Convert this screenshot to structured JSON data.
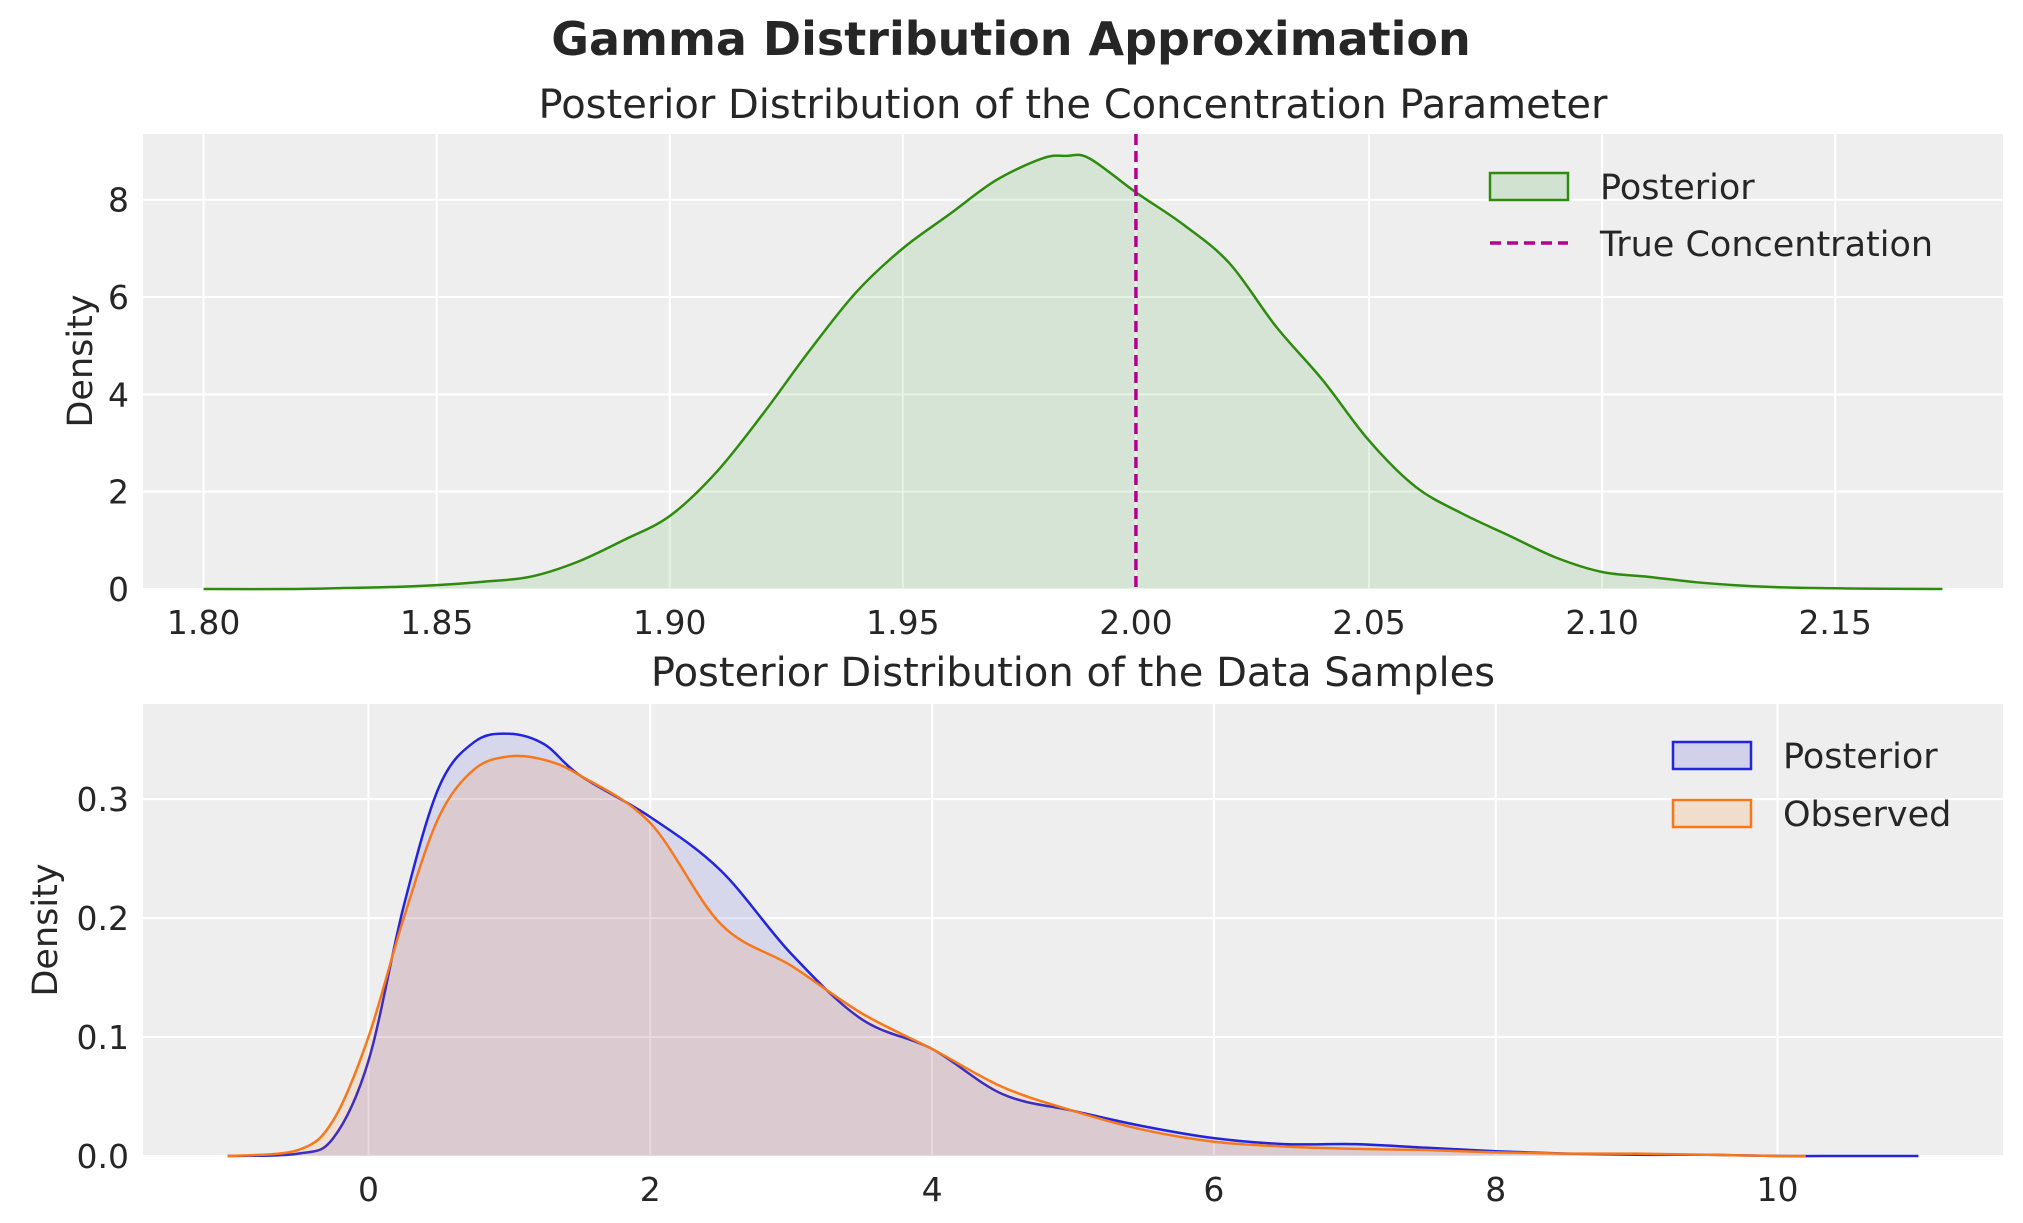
{
  "figure": {
    "suptitle": "Gamma Distribution Approximation"
  },
  "chart_data": [
    {
      "type": "area",
      "title": "Posterior Distribution of the Concentration Parameter",
      "xlabel": "",
      "ylabel": "Density",
      "xlim": [
        1.787,
        2.186
      ],
      "ylim": [
        0,
        9.35
      ],
      "xticks": [
        1.8,
        1.85,
        1.9,
        1.95,
        2.0,
        2.05,
        2.1,
        2.15
      ],
      "xtick_labels": [
        "1.80",
        "1.85",
        "1.90",
        "1.95",
        "2.00",
        "2.05",
        "2.10",
        "2.15"
      ],
      "yticks": [
        0,
        2,
        4,
        6,
        8
      ],
      "ytick_labels": [
        "0",
        "2",
        "4",
        "6",
        "8"
      ],
      "grid": true,
      "legend_position": "top-right",
      "series": [
        {
          "name": "Posterior",
          "kind": "kde-fill",
          "color": "#2ca02c",
          "line_color": "#2e8b0e",
          "x": [
            1.8,
            1.82,
            1.83,
            1.84,
            1.85,
            1.86,
            1.87,
            1.88,
            1.89,
            1.9,
            1.91,
            1.92,
            1.93,
            1.94,
            1.95,
            1.96,
            1.97,
            1.98,
            1.985,
            1.99,
            2.0,
            2.01,
            2.02,
            2.03,
            2.04,
            2.05,
            2.06,
            2.07,
            2.08,
            2.09,
            2.1,
            2.11,
            2.12,
            2.13,
            2.14,
            2.15,
            2.16,
            2.173
          ],
          "y": [
            0.0,
            0.0,
            0.02,
            0.04,
            0.08,
            0.15,
            0.25,
            0.55,
            1.0,
            1.5,
            2.4,
            3.6,
            4.9,
            6.1,
            7.0,
            7.7,
            8.4,
            8.85,
            8.9,
            8.85,
            8.15,
            7.5,
            6.7,
            5.4,
            4.3,
            3.05,
            2.1,
            1.55,
            1.1,
            0.65,
            0.35,
            0.25,
            0.14,
            0.07,
            0.03,
            0.015,
            0.005,
            0.0
          ]
        },
        {
          "name": "True Concentration",
          "kind": "vline",
          "color": "#b5008f",
          "x_value": 2.0
        }
      ]
    },
    {
      "type": "area",
      "title": "Posterior Distribution of the Data Samples",
      "xlabel": "",
      "ylabel": "Density",
      "xlim": [
        -1.6,
        11.6
      ],
      "ylim": [
        0,
        0.38
      ],
      "xticks": [
        0,
        2,
        4,
        6,
        8,
        10
      ],
      "xtick_labels": [
        "0",
        "2",
        "4",
        "6",
        "8",
        "10"
      ],
      "yticks": [
        0.0,
        0.1,
        0.2,
        0.3
      ],
      "ytick_labels": [
        "0.0",
        "0.1",
        "0.2",
        "0.3"
      ],
      "grid": true,
      "legend_position": "top-right",
      "series": [
        {
          "name": "Posterior",
          "kind": "kde-fill",
          "color": "#3030e0",
          "line_color": "#2424d8",
          "x": [
            -1.0,
            -0.5,
            -0.25,
            0.0,
            0.25,
            0.5,
            0.75,
            1.0,
            1.25,
            1.5,
            2.0,
            2.5,
            3.0,
            3.5,
            4.0,
            4.5,
            5.0,
            5.5,
            6.0,
            6.5,
            7.0,
            7.5,
            8.0,
            8.5,
            9.0,
            9.5,
            10.0,
            10.5,
            11.0
          ],
          "y": [
            0.0,
            0.002,
            0.015,
            0.08,
            0.21,
            0.31,
            0.348,
            0.355,
            0.346,
            0.32,
            0.285,
            0.24,
            0.17,
            0.115,
            0.09,
            0.052,
            0.038,
            0.025,
            0.015,
            0.01,
            0.01,
            0.007,
            0.004,
            0.002,
            0.001,
            0.001,
            0.0,
            0.0,
            0.0
          ]
        },
        {
          "name": "Observed",
          "kind": "kde-fill",
          "color": "#ff7f0e",
          "line_color": "#f5781c",
          "x": [
            -1.0,
            -0.5,
            -0.25,
            0.0,
            0.25,
            0.5,
            0.75,
            1.0,
            1.25,
            1.5,
            2.0,
            2.5,
            3.0,
            3.5,
            4.0,
            4.5,
            5.0,
            5.5,
            6.0,
            6.5,
            7.0,
            7.5,
            8.0,
            8.5,
            9.0,
            9.5,
            10.0,
            10.2
          ],
          "y": [
            0.0,
            0.005,
            0.03,
            0.1,
            0.2,
            0.285,
            0.325,
            0.336,
            0.333,
            0.32,
            0.28,
            0.195,
            0.16,
            0.12,
            0.09,
            0.058,
            0.038,
            0.022,
            0.012,
            0.008,
            0.006,
            0.005,
            0.003,
            0.002,
            0.002,
            0.001,
            0.0,
            0.0
          ]
        }
      ]
    }
  ]
}
